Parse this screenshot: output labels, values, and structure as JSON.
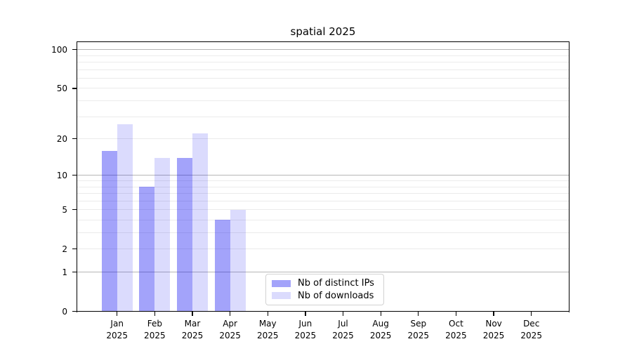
{
  "chart_data": {
    "type": "bar",
    "title": "spatial 2025",
    "categories": [
      "Jan",
      "Feb",
      "Mar",
      "Apr",
      "May",
      "Jun",
      "Jul",
      "Aug",
      "Sep",
      "Oct",
      "Nov",
      "Dec"
    ],
    "year_label": "2025",
    "series": [
      {
        "name": "Nb of distinct IPs",
        "color": "rgba(0,0,240,0.36)",
        "values": [
          16,
          8,
          14,
          4,
          null,
          null,
          null,
          null,
          null,
          null,
          null,
          null
        ]
      },
      {
        "name": "Nb of downloads",
        "color": "rgba(0,0,240,0.14)",
        "values": [
          26,
          14,
          22,
          5,
          null,
          null,
          null,
          null,
          null,
          null,
          null,
          null
        ]
      }
    ],
    "yscale": "log1p",
    "ylim": [
      0,
      114
    ],
    "yticks": [
      0,
      1,
      2,
      5,
      10,
      20,
      50,
      100
    ],
    "major_gridlines": [
      1,
      10,
      100
    ],
    "minor_gridlines": [
      2,
      3,
      4,
      5,
      6,
      7,
      8,
      9,
      20,
      30,
      40,
      50,
      60,
      70,
      80,
      90
    ],
    "grid_major_color": "#b6b6b6",
    "grid_minor_color": "#ebebeb",
    "legend_position": "lower center",
    "xlabel": "",
    "ylabel": ""
  }
}
